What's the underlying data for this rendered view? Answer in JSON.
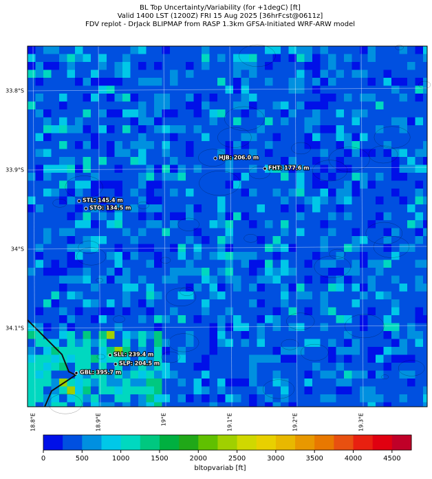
{
  "header": {
    "lines": [
      "BL Top Uncertainty/Variability (for +1degC) [ft]",
      "Valid 1400 LST (1200Z) FRI 15 Aug 2025 [36hrFcst@0611z]",
      "FDV replot - DrJack BLIPMAP from RASP 1.3km GFSA-Initiated WRF-ARW model"
    ]
  },
  "map": {
    "lat_labels": [
      "33.8°S",
      "33.9°S",
      "34°S",
      "34.1°S"
    ],
    "lon_labels": [
      "18.8°E",
      "18.9°E",
      "19°E",
      "19.1°E",
      "19.2°E",
      "19.3°E"
    ],
    "stations": [
      {
        "label": "HJB: 206.0 m"
      },
      {
        "label": "FHT: 177.6 m"
      },
      {
        "label": "STL: 145.4 m"
      },
      {
        "label": "STO: 134.5 m"
      },
      {
        "label": "SLL: 239.4 m"
      },
      {
        "label": "SLP: 204.5 m"
      },
      {
        "label": "GBL: 395.7 m"
      }
    ]
  },
  "colorbar": {
    "range": [
      0,
      4750
    ],
    "ticks": [
      0,
      500,
      1000,
      1500,
      2000,
      2500,
      3000,
      3500,
      4000,
      4500
    ],
    "label": "bltopvariab [ft]",
    "colors": [
      "#0010e8",
      "#0050e0",
      "#0090e0",
      "#00c8e8",
      "#00d8c0",
      "#00c880",
      "#00b040",
      "#20a818",
      "#60c000",
      "#a0d000",
      "#d0d800",
      "#e8d000",
      "#e8b800",
      "#e89800",
      "#e87800",
      "#e85010",
      "#e82010",
      "#e00010",
      "#c00028"
    ]
  }
}
